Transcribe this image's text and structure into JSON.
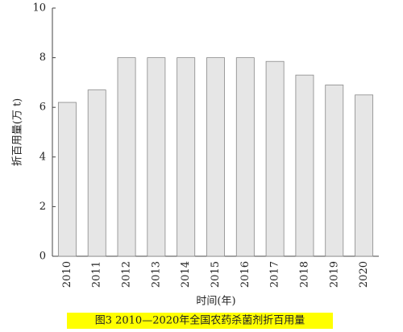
{
  "chart_data": {
    "type": "bar",
    "y_label": "折百用量(万 t)",
    "x_label": "时间(年)",
    "caption": "图3  2010—2020年全国农药杀菌剂折百用量",
    "categories": [
      "2010",
      "2011",
      "2012",
      "2013",
      "2014",
      "2015",
      "2016",
      "2017",
      "2018",
      "2019",
      "2020"
    ],
    "values": [
      6.2,
      6.7,
      8.0,
      8.0,
      8.0,
      8.0,
      8.0,
      7.85,
      7.3,
      6.9,
      6.5
    ],
    "color": "#e6e6e6",
    "ylim": [
      0,
      10
    ],
    "yticks": [
      0,
      2,
      4,
      6,
      8,
      10
    ],
    "grid": false
  }
}
